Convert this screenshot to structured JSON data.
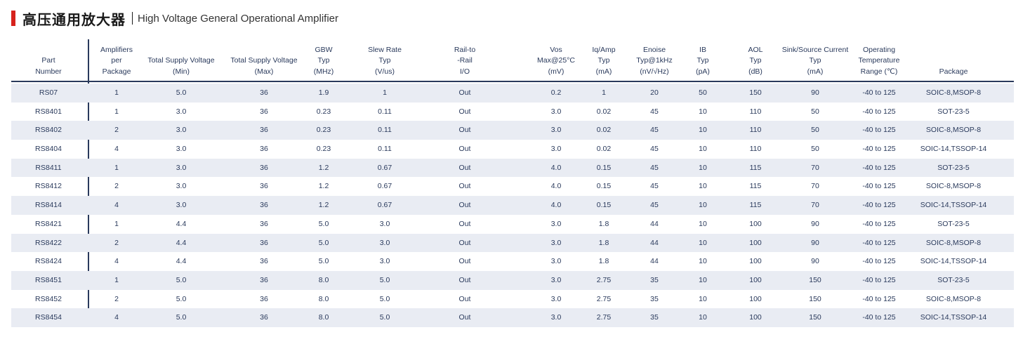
{
  "title": {
    "cn": "高压通用放大器",
    "en": "High Voltage General Operational Amplifier"
  },
  "columns": [
    {
      "key": "part",
      "lines": [
        "Part",
        "Number"
      ]
    },
    {
      "key": "amps",
      "lines": [
        "Amplifiers",
        "per",
        "Package"
      ]
    },
    {
      "key": "vmin",
      "lines": [
        "Total Supply Voltage",
        "(Min)"
      ]
    },
    {
      "key": "vmax",
      "lines": [
        "Total Supply Voltage",
        "(Max)"
      ]
    },
    {
      "key": "gbw",
      "lines": [
        "GBW",
        "Typ",
        "(MHz)"
      ]
    },
    {
      "key": "slew",
      "lines": [
        "Slew Rate",
        "Typ",
        "(V/us)"
      ]
    },
    {
      "key": "rail",
      "lines": [
        "Rail-to",
        "-Rail",
        "I/O"
      ]
    },
    {
      "key": "vos",
      "lines": [
        "Vos",
        "Max@25°C",
        "(mV)"
      ]
    },
    {
      "key": "iq",
      "lines": [
        "Iq/Amp",
        "Typ",
        "(mA)"
      ]
    },
    {
      "key": "enoise",
      "lines": [
        "Enoise",
        "Typ@1kHz",
        "(nV/√Hz)"
      ]
    },
    {
      "key": "ib",
      "lines": [
        "IB",
        "Typ",
        "(pA)"
      ]
    },
    {
      "key": "aol",
      "lines": [
        "AOL",
        "Typ",
        "(dB)"
      ]
    },
    {
      "key": "sink",
      "lines": [
        "Sink/Source Current",
        "Typ",
        "(mA)"
      ]
    },
    {
      "key": "temp",
      "lines": [
        "Operating",
        "Temperature",
        "Range (℃)"
      ]
    },
    {
      "key": "pkg",
      "lines": [
        "Package"
      ]
    }
  ],
  "rows": [
    [
      "RS07",
      "1",
      "5.0",
      "36",
      "1.9",
      "1",
      "Out",
      "0.2",
      "1",
      "20",
      "50",
      "150",
      "90",
      "-40 to 125",
      "SOIC-8,MSOP-8"
    ],
    [
      "RS8401",
      "1",
      "3.0",
      "36",
      "0.23",
      "0.11",
      "Out",
      "3.0",
      "0.02",
      "45",
      "10",
      "110",
      "50",
      "-40 to 125",
      "SOT-23-5"
    ],
    [
      "RS8402",
      "2",
      "3.0",
      "36",
      "0.23",
      "0.11",
      "Out",
      "3.0",
      "0.02",
      "45",
      "10",
      "110",
      "50",
      "-40 to 125",
      "SOIC-8,MSOP-8"
    ],
    [
      "RS8404",
      "4",
      "3.0",
      "36",
      "0.23",
      "0.11",
      "Out",
      "3.0",
      "0.02",
      "45",
      "10",
      "110",
      "50",
      "-40 to 125",
      "SOIC-14,TSSOP-14"
    ],
    [
      "RS8411",
      "1",
      "3.0",
      "36",
      "1.2",
      "0.67",
      "Out",
      "4.0",
      "0.15",
      "45",
      "10",
      "115",
      "70",
      "-40 to 125",
      "SOT-23-5"
    ],
    [
      "RS8412",
      "2",
      "3.0",
      "36",
      "1.2",
      "0.67",
      "Out",
      "4.0",
      "0.15",
      "45",
      "10",
      "115",
      "70",
      "-40 to 125",
      "SOIC-8,MSOP-8"
    ],
    [
      "RS8414",
      "4",
      "3.0",
      "36",
      "1.2",
      "0.67",
      "Out",
      "4.0",
      "0.15",
      "45",
      "10",
      "115",
      "70",
      "-40 to 125",
      "SOIC-14,TSSOP-14"
    ],
    [
      "RS8421",
      "1",
      "4.4",
      "36",
      "5.0",
      "3.0",
      "Out",
      "3.0",
      "1.8",
      "44",
      "10",
      "100",
      "90",
      "-40 to 125",
      "SOT-23-5"
    ],
    [
      "RS8422",
      "2",
      "4.4",
      "36",
      "5.0",
      "3.0",
      "Out",
      "3.0",
      "1.8",
      "44",
      "10",
      "100",
      "90",
      "-40 to 125",
      "SOIC-8,MSOP-8"
    ],
    [
      "RS8424",
      "4",
      "4.4",
      "36",
      "5.0",
      "3.0",
      "Out",
      "3.0",
      "1.8",
      "44",
      "10",
      "100",
      "90",
      "-40 to 125",
      "SOIC-14,TSSOP-14"
    ],
    [
      "RS8451",
      "1",
      "5.0",
      "36",
      "8.0",
      "5.0",
      "Out",
      "3.0",
      "2.75",
      "35",
      "10",
      "100",
      "150",
      "-40 to 125",
      "SOT-23-5"
    ],
    [
      "RS8452",
      "2",
      "5.0",
      "36",
      "8.0",
      "5.0",
      "Out",
      "3.0",
      "2.75",
      "35",
      "10",
      "100",
      "150",
      "-40 to 125",
      "SOIC-8,MSOP-8"
    ],
    [
      "RS8454",
      "4",
      "5.0",
      "36",
      "8.0",
      "5.0",
      "Out",
      "3.0",
      "2.75",
      "35",
      "10",
      "100",
      "150",
      "-40 to 125",
      "SOIC-14,TSSOP-14"
    ]
  ],
  "colors": {
    "accent": "#d6221c",
    "text": "#2a3a5c",
    "row_shade": "#e9ecf3"
  }
}
